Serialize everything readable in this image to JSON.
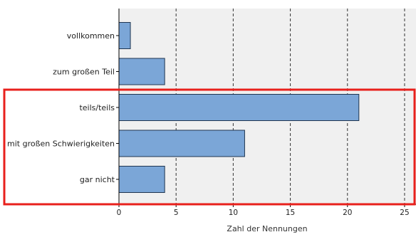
{
  "chart_data": {
    "type": "bar",
    "orientation": "horizontal",
    "categories": [
      "vollkommen",
      "zum großen Teil",
      "teils/teils",
      "mit großen Schwierigkeiten",
      "gar nicht"
    ],
    "values": [
      1,
      4,
      21,
      11,
      4
    ],
    "xlabel": "Zahl der Nennungen",
    "ylabel": "",
    "xlim": [
      0,
      26
    ],
    "xticks": [
      0,
      5,
      10,
      15,
      20,
      25
    ],
    "grid": "vertical dashed",
    "legend": "none",
    "colors": {
      "bar_fill": "#7BA6D7",
      "bar_stroke": "#1f3550",
      "plot_background": "#F0F0F0",
      "grid": "#333333",
      "highlight_box": "#E8201C"
    },
    "annotations": [
      {
        "type": "highlight-box",
        "categories": [
          "teils/teils",
          "mit großen Schwierigkeiten",
          "gar nicht"
        ],
        "color": "red"
      }
    ]
  }
}
